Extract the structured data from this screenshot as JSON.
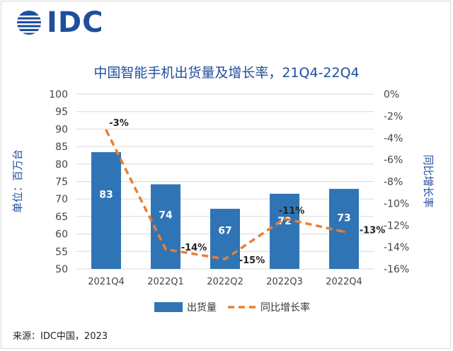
{
  "logo": {
    "text": "IDC"
  },
  "title": "中国智能手机出货量及增长率，21Q4-22Q4",
  "source": "来源：IDC中国，2023",
  "colors": {
    "bar": "#2f75b5",
    "line": "#ed7d31",
    "title": "#1f4e9c",
    "axis_label": "#1f4e9c"
  },
  "chart_data": {
    "type": "bar",
    "categories": [
      "2021Q4",
      "2022Q1",
      "2022Q2",
      "2022Q3",
      "2022Q4"
    ],
    "series": [
      {
        "name": "出货量",
        "type": "bar",
        "values": [
          83.4,
          74.2,
          67.2,
          71.5,
          72.9
        ],
        "labels": [
          "83",
          "74",
          "67",
          "72",
          "73"
        ],
        "axis": "left"
      },
      {
        "name": "同比增长率",
        "type": "line",
        "style": "dashed",
        "values": [
          -3.3,
          -14.2,
          -15.1,
          -11.4,
          -12.6
        ],
        "labels": [
          "-3%",
          "-14%",
          "-15%",
          "-11%",
          "-13%"
        ],
        "axis": "right"
      }
    ],
    "ylabel": "单位：百万台",
    "ylim": [
      50,
      100
    ],
    "yticks": [
      "50",
      "55",
      "60",
      "65",
      "70",
      "75",
      "80",
      "85",
      "90",
      "95",
      "100"
    ],
    "y2label": "同比增长率",
    "y2lim": [
      -16,
      0
    ],
    "y2ticks": [
      "0%",
      "-2%",
      "-4%",
      "-6%",
      "-8%",
      "-10%",
      "-12%",
      "-14%",
      "-16%"
    ],
    "grid": true,
    "legend_position": "bottom"
  }
}
